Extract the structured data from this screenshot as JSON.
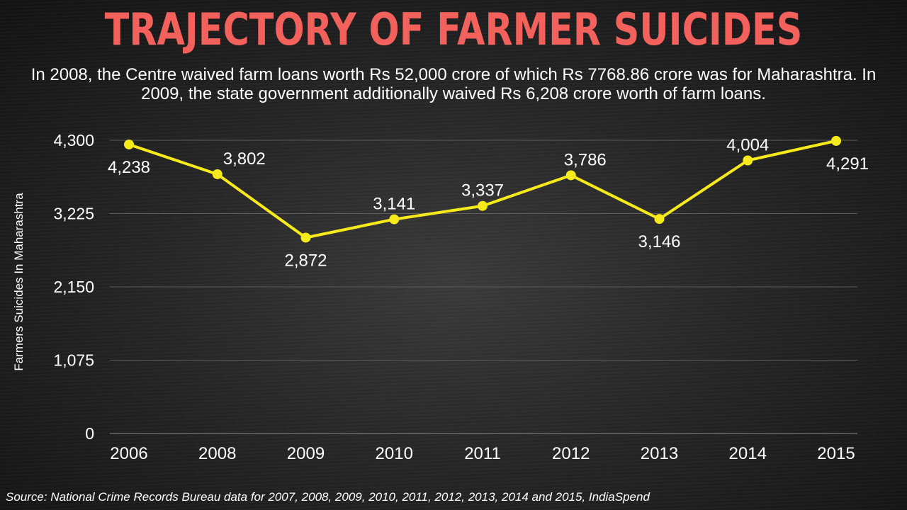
{
  "header": {
    "title": "TRAJECTORY OF FARMER SUICIDES",
    "subtitle": "In 2008, the Centre waived farm loans worth Rs 52,000 crore of which Rs 7768.86 crore was for Maharashtra. In 2009, the state government additionally waived Rs 6,208 crore worth of farm loans."
  },
  "footer": {
    "source": "Source: National Crime Records Bureau data for 2007, 2008, 2009, 2010, 2011, 2012, 2013, 2014 and 2015, IndiaSpend"
  },
  "chart_data": {
    "type": "line",
    "title": "",
    "xlabel": "",
    "ylabel": "Farmers Suicides In Maharashtra",
    "categories": [
      "2006",
      "2008",
      "2009",
      "2010",
      "2011",
      "2012",
      "2013",
      "2014",
      "2015"
    ],
    "values": [
      4238,
      3802,
      2872,
      3141,
      3337,
      3786,
      3146,
      4004,
      4291
    ],
    "data_labels": [
      "4,238",
      "3,802",
      "2,872",
      "3,141",
      "3,337",
      "3,786",
      "3,146",
      "4,004",
      "4,291"
    ],
    "ylim": [
      0,
      4300
    ],
    "yticks": [
      0,
      1075,
      2150,
      3225,
      4300
    ],
    "ytick_labels": [
      "0",
      "1,075",
      "2,150",
      "3,225",
      "4,300"
    ],
    "grid": true,
    "line_color": "#f7ea1b",
    "title_color": "#f2615c"
  }
}
